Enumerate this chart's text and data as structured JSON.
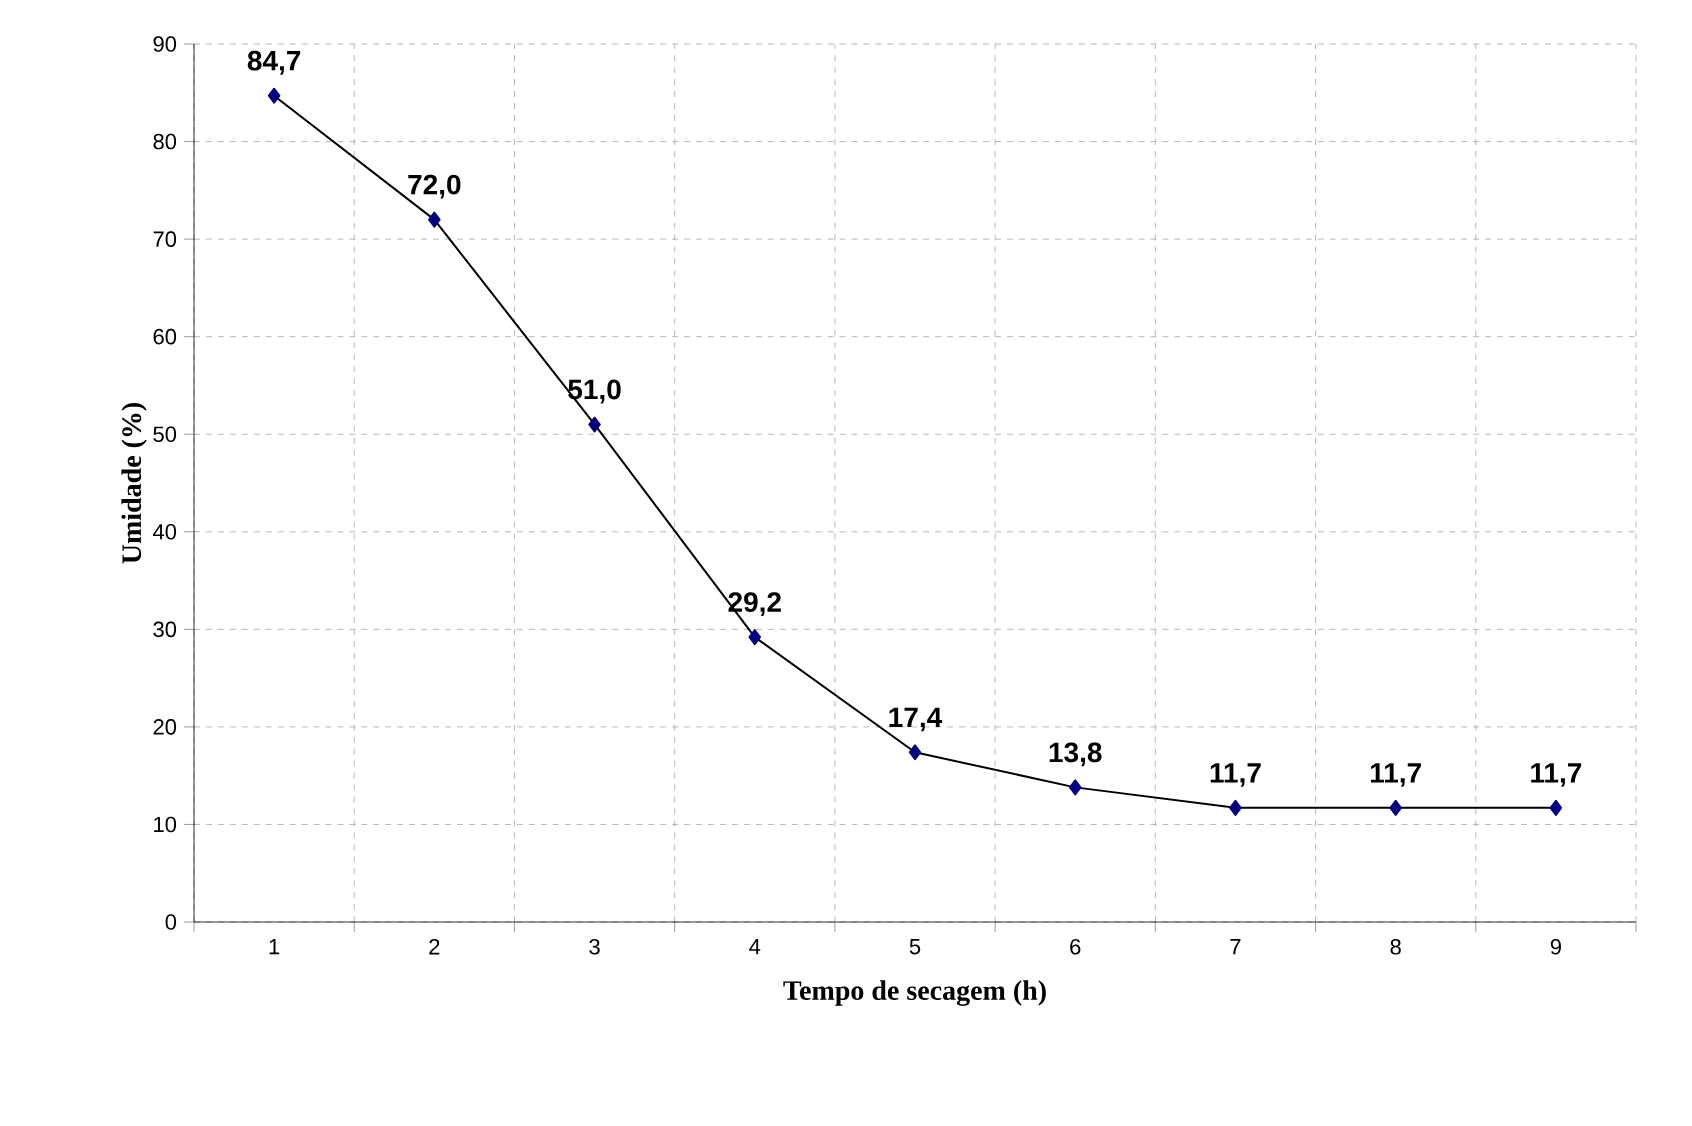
{
  "chart_data": {
    "type": "line",
    "xlabel": "Tempo de secagem (h)",
    "ylabel": "Umidade (%)",
    "categories": [
      "1",
      "2",
      "3",
      "4",
      "5",
      "6",
      "7",
      "8",
      "9"
    ],
    "series": [
      {
        "color": "#000080",
        "values": [
          84.7,
          72.0,
          51.0,
          29.2,
          17.4,
          13.8,
          11.7,
          11.7,
          11.7
        ],
        "value_labels": [
          "84,7",
          "72,0",
          "51,0",
          "29,2",
          "17,4",
          "13,8",
          "11,7",
          "11,7",
          "11,7"
        ]
      }
    ],
    "ylim": [
      0,
      90
    ],
    "yticks": [
      0,
      10,
      20,
      30,
      40,
      50,
      60,
      70,
      80,
      90
    ],
    "grid": true,
    "marker": "diamond",
    "line_style": "solid"
  }
}
